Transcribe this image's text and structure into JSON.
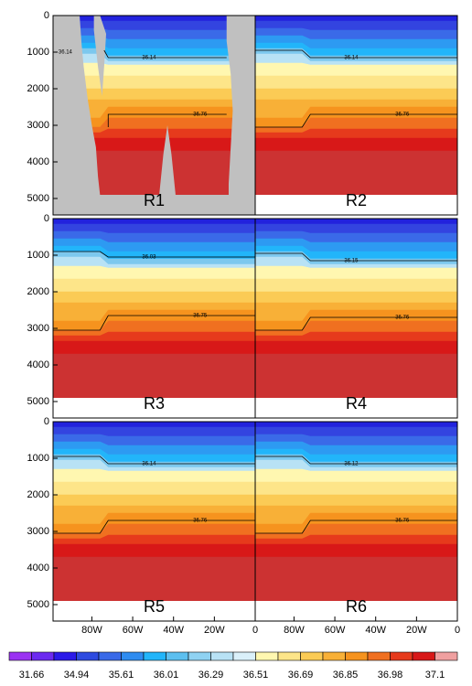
{
  "chart_data": {
    "type": "contour",
    "xlim": [
      -99,
      0
    ],
    "ylim": [
      0,
      5450
    ],
    "xticks": [
      {
        "value": -80,
        "label": "80W"
      },
      {
        "value": -60,
        "label": "60W"
      },
      {
        "value": -40,
        "label": "40W"
      },
      {
        "value": -20,
        "label": "20W"
      },
      0
    ],
    "yticks": [
      0,
      1000,
      2000,
      3000,
      4000,
      5000
    ],
    "data_bottom": 4900,
    "layers": [
      {
        "color": "#2222dd",
        "top_west": 0,
        "top_east": 0
      },
      {
        "color": "#3344e0",
        "top_west": 150,
        "top_east": 150
      },
      {
        "color": "#3a6ae8",
        "top_west": 350,
        "top_east": 400
      },
      {
        "color": "#2d9af2",
        "top_west": 550,
        "top_east": 650
      },
      {
        "color": "#22b5fa",
        "top_west": 750,
        "top_east": 900
      },
      {
        "color": "#7cc8ee",
        "top_west": 900,
        "top_east": 1100
      },
      {
        "color": "#b8e2f5",
        "top_west": 1050,
        "top_east": 1250
      },
      {
        "color": "#fff7b0",
        "top_west": 1300,
        "top_east": 1350
      },
      {
        "color": "#fde589",
        "top_west": 1650,
        "top_east": 1650
      },
      {
        "color": "#fbcb55",
        "top_west": 2000,
        "top_east": 2000
      },
      {
        "color": "#f8b037",
        "top_west": 2300,
        "top_east": 2300
      },
      {
        "color": "#f6931e",
        "top_west": 2800,
        "top_east": 2500
      },
      {
        "color": "#f07020",
        "top_west": 3050,
        "top_east": 2800
      },
      {
        "color": "#e63a1c",
        "top_west": 3200,
        "top_east": 3100
      },
      {
        "color": "#d81818",
        "top_west": 3350,
        "top_east": 3350
      },
      {
        "color": "#cc3232",
        "top_west": 3700,
        "top_east": 3700
      }
    ],
    "panels": [
      {
        "label": "R1",
        "contours": [
          {
            "level": 36.14,
            "depth_west": 950,
            "depth_east": 1150
          },
          {
            "level": 36.76,
            "depth_west": 3050,
            "depth_east": 2700
          }
        ]
      },
      {
        "label": "R2",
        "contours": [
          {
            "level": 36.14,
            "depth_west": 950,
            "depth_east": 1150
          },
          {
            "level": 36.76,
            "depth_west": 3050,
            "depth_east": 2700
          }
        ]
      },
      {
        "label": "R3",
        "contours": [
          {
            "level": 36.03,
            "depth_west": 900,
            "depth_east": 1050
          },
          {
            "level": 36.75,
            "depth_west": 3050,
            "depth_east": 2650
          }
        ]
      },
      {
        "label": "R4",
        "contours": [
          {
            "level": 36.15,
            "depth_west": 950,
            "depth_east": 1150
          },
          {
            "level": 36.76,
            "depth_west": 3050,
            "depth_east": 2700
          }
        ]
      },
      {
        "label": "R5",
        "contours": [
          {
            "level": 36.14,
            "depth_west": 950,
            "depth_east": 1150
          },
          {
            "level": 36.76,
            "depth_west": 3050,
            "depth_east": 2700
          }
        ]
      },
      {
        "label": "R6",
        "contours": [
          {
            "level": 36.12,
            "depth_west": 950,
            "depth_east": 1150
          },
          {
            "level": 36.76,
            "depth_west": 3050,
            "depth_east": 2700
          }
        ]
      }
    ],
    "colorbar": {
      "colors": [
        "#9b33f2",
        "#6c2af0",
        "#2b1ae8",
        "#2e4be0",
        "#3a6ae8",
        "#2f8cf0",
        "#22b5fa",
        "#5cbfef",
        "#8fd2f2",
        "#b8e2f5",
        "#daf0fa",
        "#fff7b0",
        "#fde589",
        "#fbcb55",
        "#f8b037",
        "#f6931e",
        "#f07020",
        "#e63a1c",
        "#d81818",
        "#f0a0a0"
      ],
      "labels": [
        31.66,
        34.94,
        35.61,
        36.01,
        36.29,
        36.51,
        36.69,
        36.85,
        36.98,
        37.1
      ]
    }
  }
}
